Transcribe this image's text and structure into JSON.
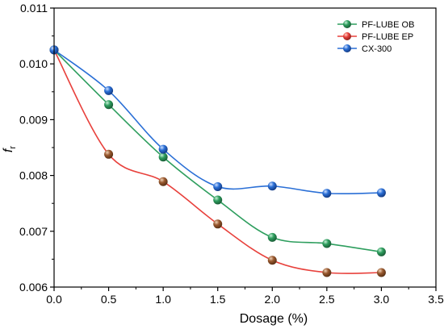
{
  "chart_data": {
    "type": "line",
    "xlabel": "Dosage (%)",
    "ylabel": "f",
    "ylabel_sub": "r",
    "xlim": [
      0.0,
      3.5
    ],
    "ylim": [
      0.006,
      0.011
    ],
    "x_ticks": [
      "0.0",
      "0.5",
      "1.0",
      "1.5",
      "2.0",
      "2.5",
      "3.0",
      "3.5"
    ],
    "y_ticks": [
      "0.006",
      "0.007",
      "0.008",
      "0.009",
      "0.010",
      "0.011"
    ],
    "x_tick_values": [
      0.0,
      0.5,
      1.0,
      1.5,
      2.0,
      2.5,
      3.0,
      3.5
    ],
    "y_tick_values": [
      0.006,
      0.007,
      0.008,
      0.009,
      0.01,
      0.011
    ],
    "grid": false,
    "legend_position": "top-right",
    "x": [
      0.0,
      0.5,
      1.0,
      1.5,
      2.0,
      2.5,
      3.0
    ],
    "series": [
      {
        "name": "PF-LUBE OB",
        "color": "#2e9e5e",
        "values": [
          0.01025,
          0.00927,
          0.00833,
          0.00756,
          0.00689,
          0.00678,
          0.00663
        ]
      },
      {
        "name": "PF-LUBE EP",
        "color": "#e8413c",
        "values": [
          0.01025,
          0.00838,
          0.00789,
          0.00713,
          0.00648,
          0.00626,
          0.00626
        ]
      },
      {
        "name": "CX-300",
        "color": "#2a6fd6",
        "values": [
          0.01025,
          0.00952,
          0.00847,
          0.0078,
          0.00781,
          0.00768,
          0.00769
        ]
      }
    ]
  }
}
